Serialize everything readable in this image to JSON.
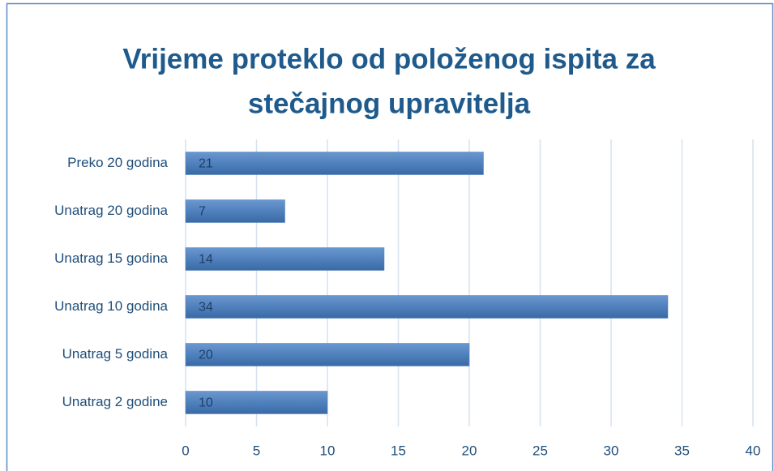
{
  "chart_data": {
    "type": "hbar",
    "title": [
      "Vrijeme proteklo od položenog ispita za",
      "stečajnog upravitelja"
    ],
    "categories": [
      "Preko 20 godina",
      "Unatrag 20 godina",
      "Unatrag 15 godina",
      "Unatrag 10 godina",
      "Unatrag 5 godina",
      "Unatrag 2 godine"
    ],
    "values": [
      21,
      7,
      14,
      34,
      20,
      10
    ],
    "color": "#4f81bd",
    "xlim": [
      0,
      40
    ],
    "xticks": [
      0,
      5,
      10,
      15,
      20,
      25,
      30,
      35,
      40
    ],
    "grid": true,
    "data_labels": true
  }
}
